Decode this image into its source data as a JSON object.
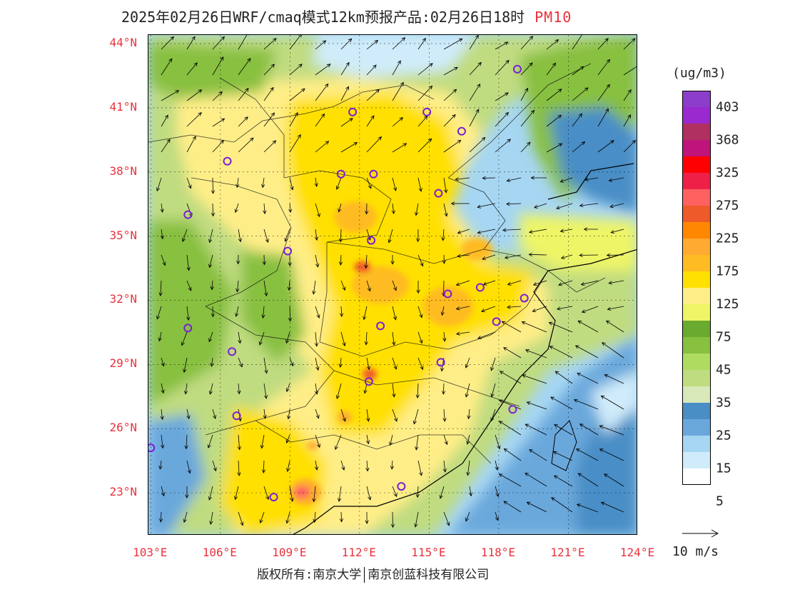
{
  "title": {
    "text": "2025年02月26日WRF/cmaq模式12km预报产品:02月26日18时",
    "pollutant": "PM10",
    "pollutant_color": "#e8323c"
  },
  "map": {
    "lat_labels": [
      "44°N",
      "41°N",
      "38°N",
      "35°N",
      "32°N",
      "29°N",
      "26°N",
      "23°N"
    ],
    "lon_labels": [
      "103°E",
      "106°E",
      "109°E",
      "112°E",
      "115°E",
      "118°E",
      "121°E",
      "124°E"
    ],
    "lat_values": [
      44,
      41,
      38,
      35,
      32,
      29,
      26,
      23
    ],
    "lon_values": [
      103,
      106,
      109,
      112,
      115,
      118,
      121,
      124
    ],
    "lon_range": [
      102.9,
      124.0
    ],
    "lat_range": [
      21.0,
      44.4
    ],
    "city_marker_color": "#7a1fd6",
    "city_markers": [
      [
        118.8,
        42.8
      ],
      [
        111.7,
        40.8
      ],
      [
        114.9,
        40.8
      ],
      [
        116.4,
        39.9
      ],
      [
        106.3,
        38.5
      ],
      [
        111.2,
        37.9
      ],
      [
        112.6,
        37.9
      ],
      [
        115.4,
        37.0
      ],
      [
        104.6,
        36.0
      ],
      [
        112.5,
        34.8
      ],
      [
        108.9,
        34.3
      ],
      [
        117.2,
        32.6
      ],
      [
        115.8,
        32.3
      ],
      [
        119.1,
        32.1
      ],
      [
        104.6,
        30.7
      ],
      [
        112.9,
        30.8
      ],
      [
        117.9,
        31.0
      ],
      [
        106.5,
        29.6
      ],
      [
        115.5,
        29.1
      ],
      [
        112.4,
        28.2
      ],
      [
        106.7,
        26.6
      ],
      [
        103.0,
        25.1
      ],
      [
        118.6,
        26.9
      ],
      [
        108.3,
        22.8
      ],
      [
        113.8,
        23.3
      ]
    ]
  },
  "legend": {
    "unit": "(ug/m3)",
    "colors": [
      "#8c3dc9",
      "#9a2ad0",
      "#b03060",
      "#c0147a",
      "#ff0000",
      "#ee2048",
      "#ff6060",
      "#ee5a2a",
      "#ff8800",
      "#ffaa30",
      "#ffbb22",
      "#ffe000",
      "#ffee88",
      "#eef566",
      "#6aaa2e",
      "#88c040",
      "#aedc60",
      "#c0dc80",
      "#d8e8b8",
      "#4a8ec6",
      "#6aa8dc",
      "#a6d6f2",
      "#d0ecfa",
      "#ffffff"
    ],
    "labels": [
      {
        "text": "403",
        "index": 1
      },
      {
        "text": "368",
        "index": 3
      },
      {
        "text": "325",
        "index": 5
      },
      {
        "text": "275",
        "index": 7
      },
      {
        "text": "225",
        "index": 9
      },
      {
        "text": "175",
        "index": 11
      },
      {
        "text": "125",
        "index": 13
      },
      {
        "text": "75",
        "index": 15
      },
      {
        "text": "45",
        "index": 17
      },
      {
        "text": "35",
        "index": 19
      },
      {
        "text": "25",
        "index": 21
      },
      {
        "text": "15",
        "index": 23
      },
      {
        "text": "5",
        "index": 25
      }
    ],
    "ref_vector_label": "10 m/s"
  },
  "footer": {
    "copyright": "版权所有:南京大学",
    "company": "南京创蓝科技有限公司"
  }
}
